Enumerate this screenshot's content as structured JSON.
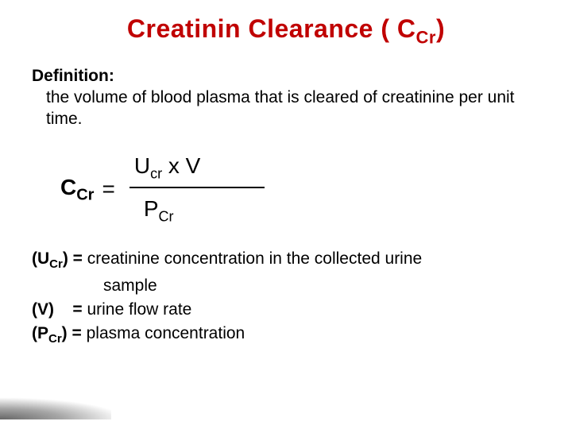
{
  "colors": {
    "accent": "#c00000",
    "text": "#000000",
    "bg": "#ffffff"
  },
  "title": {
    "pre": "Creatinin Clearance ( C",
    "sub": "Cr",
    "post": ")"
  },
  "definition": {
    "label": "Definition:",
    "text": "the volume of blood plasma that is cleared of creatinine per unit time."
  },
  "formula": {
    "lhs_main": "C",
    "lhs_sub": "Cr",
    "eq": "=",
    "num_u": "U",
    "num_u_sub": "cr",
    "num_x": " x ",
    "num_v": "V",
    "den_p": "P",
    "den_p_sub": "Cr"
  },
  "legend": {
    "ucr_sym_l": "(U",
    "ucr_sym_sub": "Cr",
    "ucr_sym_r": ")",
    "eq": " = ",
    "ucr_text": "creatinine concentration in the collected urine",
    "ucr_text2": "sample",
    "v_sym": "(V)",
    "v_pad": "   ",
    "v_text": "urine flow rate",
    "pcr_sym_l": "(P",
    "pcr_sym_sub": "Cr",
    "pcr_sym_r": ")",
    "pcr_text": "plasma concentration"
  }
}
